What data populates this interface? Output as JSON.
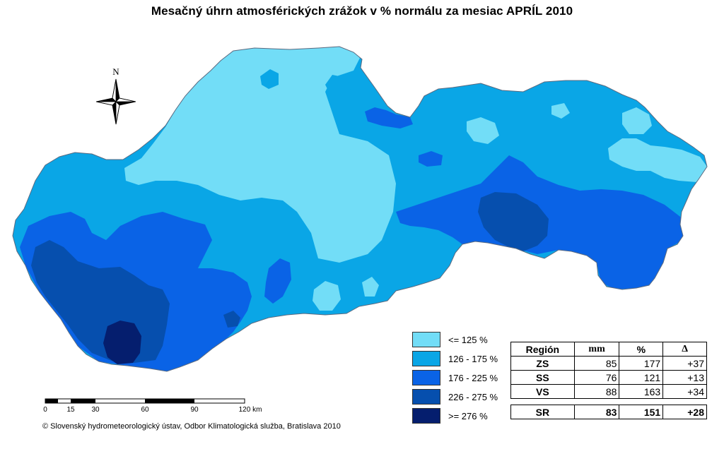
{
  "title": "Mesačný úhrn atmosférických zrážok v % normálu za mesiac APRÍL 2010",
  "compass": {
    "north_label": "N",
    "icon": "compass-rose-icon"
  },
  "legend": {
    "items": [
      {
        "label": "<= 125 %",
        "color": "#72DDF7"
      },
      {
        "label": "126 - 175 %",
        "color": "#0AA6E6"
      },
      {
        "label": "176 - 225 %",
        "color": "#0A63E6"
      },
      {
        "label": "226 - 275 %",
        "color": "#064FAE"
      },
      {
        "label": ">= 276 %",
        "color": "#051E6E"
      }
    ]
  },
  "stats_table": {
    "headers": [
      "Región",
      "mm",
      "%",
      "Δ"
    ],
    "rows": [
      {
        "region": "ZS",
        "mm": "85",
        "pct": "177",
        "delta": "+37"
      },
      {
        "region": "SS",
        "mm": "76",
        "pct": "121",
        "delta": "+13"
      },
      {
        "region": "VS",
        "mm": "88",
        "pct": "163",
        "delta": "+34"
      }
    ],
    "total": {
      "region": "SR",
      "mm": "83",
      "pct": "151",
      "delta": "+28"
    }
  },
  "scale_bar": {
    "labels": [
      "0",
      "15",
      "30",
      "60",
      "90",
      "120 km"
    ]
  },
  "credit": "© Slovenský hydrometeorologický ústav, Odbor Klimatologická služba, Bratislava 2010"
}
